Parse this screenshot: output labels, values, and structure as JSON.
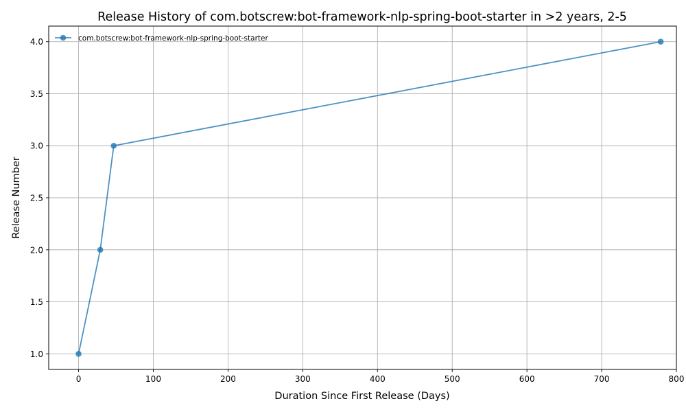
{
  "chart_data": {
    "type": "line",
    "title": "Release History of com.botscrew:bot-framework-nlp-spring-boot-starter in >2 years, 2-5",
    "xlabel": "Duration Since First Release (Days)",
    "ylabel": "Release Number",
    "xlim": [
      -40,
      800
    ],
    "ylim": [
      0.85,
      4.15
    ],
    "x_ticks": [
      0,
      100,
      200,
      300,
      400,
      500,
      600,
      700,
      800
    ],
    "y_ticks": [
      1.0,
      1.5,
      2.0,
      2.5,
      3.0,
      3.5,
      4.0
    ],
    "grid": true,
    "legend_position": "top-left",
    "series": [
      {
        "name": "com.botscrew:bot-framework-nlp-spring-boot-starter",
        "color": "#1f77b4",
        "x": [
          0,
          29,
          47,
          779
        ],
        "y": [
          1,
          2,
          3,
          4
        ]
      }
    ]
  }
}
